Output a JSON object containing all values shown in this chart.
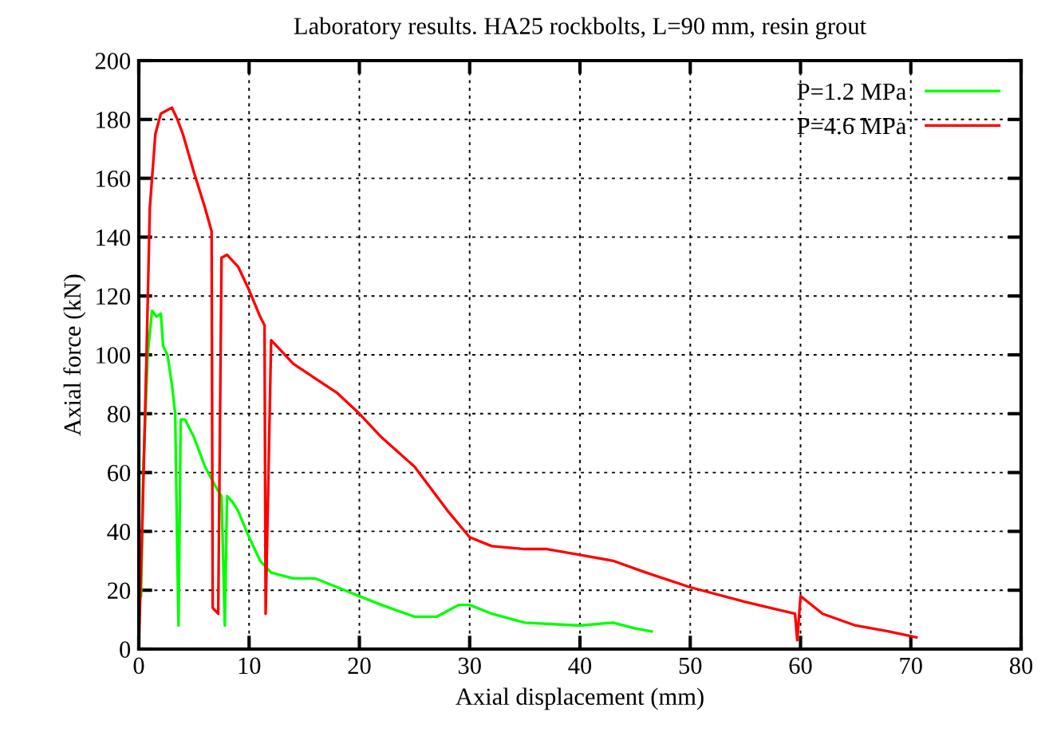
{
  "chart_data": {
    "type": "line",
    "title": "Laboratory results. HA25 rockbolts, L=90 mm, resin grout",
    "xlabel": "Axial displacement (mm)",
    "ylabel": "Axial force (kN)",
    "series": [
      {
        "name": "P=1.2 MPa",
        "color": "#00ff00",
        "x": [
          0.2,
          0.4,
          0.8,
          1.2,
          1.6,
          2.0,
          2.2,
          2.6,
          3.0,
          3.3,
          3.5,
          3.6,
          3.8,
          4.2,
          5,
          6,
          7,
          7.5,
          7.8,
          8.0,
          8.5,
          9,
          10,
          11,
          12,
          14,
          16,
          18,
          20,
          22,
          25,
          27,
          29,
          30,
          32,
          35,
          40,
          43,
          45,
          46.5
        ],
        "values": [
          18,
          60,
          100,
          115,
          113,
          114,
          103,
          100,
          90,
          80,
          30,
          8,
          78,
          78,
          72,
          62,
          55,
          52,
          8,
          52,
          50,
          47,
          38,
          30,
          26,
          24,
          24,
          21,
          18,
          15,
          11,
          11,
          15,
          15,
          12,
          9,
          8,
          9,
          7,
          6
        ]
      },
      {
        "name": "P=4.6 MPa",
        "color": "#ff0000",
        "x": [
          0,
          0.3,
          0.7,
          1.0,
          1.5,
          2,
          3,
          3.5,
          4,
          5,
          6,
          6.6,
          6.7,
          7.2,
          7.5,
          8,
          9,
          10,
          11,
          11.4,
          11.5,
          12.0,
          12.5,
          14,
          16,
          18,
          20,
          22,
          25,
          28,
          30,
          32,
          35,
          37,
          40,
          43,
          46,
          50,
          55,
          59.5,
          59.7,
          60,
          62,
          65,
          68,
          70.5
        ],
        "values": [
          0,
          40,
          100,
          150,
          175,
          182,
          184,
          180,
          175,
          162,
          150,
          142,
          14,
          12,
          133,
          134,
          130,
          122,
          113,
          110,
          12,
          105,
          103,
          97,
          92,
          87,
          80,
          72,
          62,
          47,
          38,
          35,
          34,
          34,
          32,
          30,
          26,
          21,
          16,
          12,
          3,
          18,
          12,
          8,
          6,
          4
        ]
      }
    ],
    "xlim": [
      0,
      80
    ],
    "ylim": [
      0,
      200
    ],
    "xticks": [
      0,
      10,
      20,
      30,
      40,
      50,
      60,
      70,
      80
    ],
    "yticks": [
      0,
      20,
      40,
      60,
      80,
      100,
      120,
      140,
      160,
      180,
      200
    ],
    "grid": true,
    "legend": "top right",
    "marker": "none",
    "line_style": "solid"
  }
}
